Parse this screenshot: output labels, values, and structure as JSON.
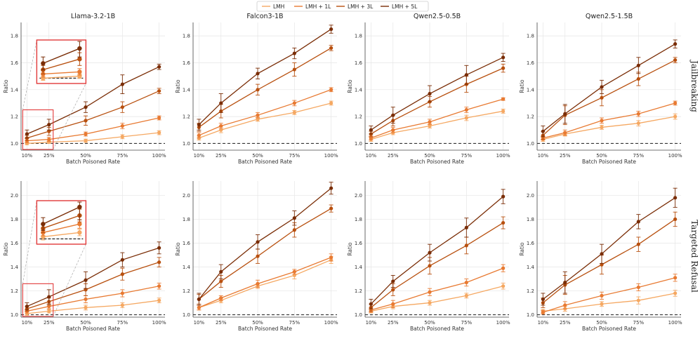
{
  "legend": [
    "LMH",
    "LMH + 1L",
    "LMH + 3L",
    "LMH + 5L"
  ],
  "series_colors": [
    "#f5a862",
    "#e87a32",
    "#b8500f",
    "#7a2d06"
  ],
  "baseline_color": "#333333",
  "chart_data": [
    {
      "type": "line",
      "row": "Jailbreaking",
      "title": "Llama-3.2-1B",
      "xlabel": "Batch Poisoned Rate",
      "ylabel": "Ratio",
      "categories": [
        "10%",
        "25%",
        "50%",
        "75%",
        "100%"
      ],
      "x": [
        10,
        25,
        50,
        75,
        100
      ],
      "ylim": [
        0.95,
        1.9
      ],
      "yticks": [
        "1.0",
        "1.2",
        "1.4",
        "1.6",
        "1.8"
      ],
      "baseline": 1.0,
      "inset": true,
      "series": [
        {
          "name": "LMH",
          "values": [
            1.0,
            1.01,
            1.02,
            1.05,
            1.08
          ],
          "err": [
            0.01,
            0.01,
            0.012,
            0.015,
            0.015
          ]
        },
        {
          "name": "LMH + 1L",
          "values": [
            1.02,
            1.03,
            1.07,
            1.13,
            1.19
          ],
          "err": [
            0.015,
            0.015,
            0.015,
            0.02,
            0.015
          ]
        },
        {
          "name": "LMH + 3L",
          "values": [
            1.04,
            1.09,
            1.17,
            1.27,
            1.39
          ],
          "err": [
            0.02,
            0.03,
            0.035,
            0.04,
            0.02
          ]
        },
        {
          "name": "LMH + 5L",
          "values": [
            1.07,
            1.14,
            1.27,
            1.44,
            1.57
          ],
          "err": [
            0.03,
            0.04,
            0.04,
            0.07,
            0.02
          ]
        }
      ]
    },
    {
      "type": "line",
      "row": "Jailbreaking",
      "title": "Falcon3-1B",
      "xlabel": "Batch Poisoned Rate",
      "ylabel": "Ratio",
      "categories": [
        "10%",
        "25%",
        "50%",
        "75%",
        "100%"
      ],
      "x": [
        10,
        25,
        50,
        75,
        100
      ],
      "ylim": [
        0.95,
        1.9
      ],
      "yticks": [
        "1.0",
        "1.2",
        "1.4",
        "1.6",
        "1.8"
      ],
      "baseline": 1.0,
      "inset": false,
      "series": [
        {
          "name": "LMH",
          "values": [
            1.04,
            1.1,
            1.18,
            1.23,
            1.3
          ],
          "err": [
            0.015,
            0.02,
            0.015,
            0.015,
            0.015
          ]
        },
        {
          "name": "LMH + 1L",
          "values": [
            1.06,
            1.13,
            1.21,
            1.3,
            1.4
          ],
          "err": [
            0.02,
            0.02,
            0.02,
            0.02,
            0.015
          ]
        },
        {
          "name": "LMH + 3L",
          "values": [
            1.12,
            1.24,
            1.4,
            1.55,
            1.71
          ],
          "err": [
            0.03,
            0.05,
            0.04,
            0.05,
            0.02
          ]
        },
        {
          "name": "LMH + 5L",
          "values": [
            1.14,
            1.3,
            1.52,
            1.67,
            1.85
          ],
          "err": [
            0.04,
            0.07,
            0.04,
            0.04,
            0.03
          ]
        }
      ]
    },
    {
      "type": "line",
      "row": "Jailbreaking",
      "title": "Qwen2.5-0.5B",
      "xlabel": "Batch Poisoned Rate",
      "ylabel": "Ratio",
      "categories": [
        "10%",
        "25%",
        "50%",
        "75%",
        "100%"
      ],
      "x": [
        10,
        25,
        50,
        75,
        100
      ],
      "ylim": [
        0.95,
        1.9
      ],
      "yticks": [
        "1.0",
        "1.2",
        "1.4",
        "1.6",
        "1.8"
      ],
      "baseline": 1.0,
      "inset": false,
      "series": [
        {
          "name": "LMH",
          "values": [
            1.03,
            1.08,
            1.13,
            1.19,
            1.24
          ],
          "err": [
            0.015,
            0.015,
            0.015,
            0.02,
            0.015
          ]
        },
        {
          "name": "LMH + 1L",
          "values": [
            1.04,
            1.1,
            1.16,
            1.25,
            1.33
          ],
          "err": [
            0.015,
            0.02,
            0.02,
            0.02,
            0.01
          ]
        },
        {
          "name": "LMH + 3L",
          "values": [
            1.07,
            1.17,
            1.31,
            1.44,
            1.56
          ],
          "err": [
            0.02,
            0.04,
            0.04,
            0.06,
            0.03
          ]
        },
        {
          "name": "LMH + 5L",
          "values": [
            1.1,
            1.21,
            1.37,
            1.51,
            1.64
          ],
          "err": [
            0.03,
            0.06,
            0.06,
            0.07,
            0.03
          ]
        }
      ]
    },
    {
      "type": "line",
      "row": "Jailbreaking",
      "title": "Qwen2.5-1.5B",
      "xlabel": "Batch Poisoned Rate",
      "ylabel": "Ratio",
      "categories": [
        "10%",
        "25%",
        "50%",
        "75%",
        "100%"
      ],
      "x": [
        10,
        25,
        50,
        75,
        100
      ],
      "ylim": [
        0.95,
        1.9
      ],
      "yticks": [
        "1.0",
        "1.2",
        "1.4",
        "1.6",
        "1.8"
      ],
      "baseline": 1.0,
      "inset": false,
      "series": [
        {
          "name": "LMH",
          "values": [
            1.03,
            1.07,
            1.12,
            1.15,
            1.2
          ],
          "err": [
            0.015,
            0.015,
            0.015,
            0.02,
            0.02
          ]
        },
        {
          "name": "LMH + 1L",
          "values": [
            1.04,
            1.08,
            1.17,
            1.22,
            1.3
          ],
          "err": [
            0.015,
            0.02,
            0.02,
            0.02,
            0.015
          ]
        },
        {
          "name": "LMH + 3L",
          "values": [
            1.06,
            1.21,
            1.34,
            1.48,
            1.62
          ],
          "err": [
            0.03,
            0.07,
            0.06,
            0.05,
            0.02
          ]
        },
        {
          "name": "LMH + 5L",
          "values": [
            1.09,
            1.22,
            1.42,
            1.58,
            1.74
          ],
          "err": [
            0.04,
            0.07,
            0.05,
            0.06,
            0.03
          ]
        }
      ]
    },
    {
      "type": "line",
      "row": "Targeted Refusal",
      "title": "",
      "xlabel": "Batch Poisoned Rate",
      "ylabel": "Ratio",
      "categories": [
        "10%",
        "25%",
        "50%",
        "75%",
        "100%"
      ],
      "x": [
        10,
        25,
        50,
        75,
        100
      ],
      "ylim": [
        0.98,
        2.12
      ],
      "yticks": [
        "1.0",
        "1.2",
        "1.4",
        "1.6",
        "1.8",
        "2.0"
      ],
      "baseline": 1.0,
      "inset": true,
      "series": [
        {
          "name": "LMH",
          "values": [
            1.01,
            1.03,
            1.06,
            1.08,
            1.12
          ],
          "err": [
            0.015,
            0.015,
            0.02,
            0.02,
            0.02
          ]
        },
        {
          "name": "LMH + 1L",
          "values": [
            1.03,
            1.07,
            1.13,
            1.18,
            1.24
          ],
          "err": [
            0.015,
            0.02,
            0.03,
            0.03,
            0.025
          ]
        },
        {
          "name": "LMH + 3L",
          "values": [
            1.05,
            1.11,
            1.21,
            1.34,
            1.44
          ],
          "err": [
            0.02,
            0.03,
            0.05,
            0.05,
            0.04
          ]
        },
        {
          "name": "LMH + 5L",
          "values": [
            1.07,
            1.15,
            1.29,
            1.46,
            1.56
          ],
          "err": [
            0.03,
            0.06,
            0.07,
            0.06,
            0.05
          ]
        }
      ]
    },
    {
      "type": "line",
      "row": "Targeted Refusal",
      "title": "",
      "xlabel": "Batch Poisoned Rate",
      "ylabel": "Ratio",
      "categories": [
        "10%",
        "25%",
        "50%",
        "75%",
        "100%"
      ],
      "x": [
        10,
        25,
        50,
        75,
        100
      ],
      "ylim": [
        0.98,
        2.12
      ],
      "yticks": [
        "1.0",
        "1.2",
        "1.4",
        "1.6",
        "1.8",
        "2.0"
      ],
      "baseline": 1.0,
      "inset": false,
      "series": [
        {
          "name": "LMH",
          "values": [
            1.06,
            1.12,
            1.24,
            1.33,
            1.46
          ],
          "err": [
            0.02,
            0.02,
            0.02,
            0.03,
            0.03
          ]
        },
        {
          "name": "LMH + 1L",
          "values": [
            1.06,
            1.14,
            1.26,
            1.36,
            1.48
          ],
          "err": [
            0.02,
            0.02,
            0.03,
            0.02,
            0.03
          ]
        },
        {
          "name": "LMH + 3L",
          "values": [
            1.13,
            1.28,
            1.49,
            1.71,
            1.89
          ],
          "err": [
            0.04,
            0.05,
            0.06,
            0.06,
            0.03
          ]
        },
        {
          "name": "LMH + 5L",
          "values": [
            1.13,
            1.36,
            1.61,
            1.81,
            2.06
          ],
          "err": [
            0.05,
            0.06,
            0.06,
            0.06,
            0.05
          ]
        }
      ]
    },
    {
      "type": "line",
      "row": "Targeted Refusal",
      "title": "",
      "xlabel": "Batch Poisoned Rate",
      "ylabel": "Ratio",
      "categories": [
        "10%",
        "25%",
        "50%",
        "75%",
        "100%"
      ],
      "x": [
        10,
        25,
        50,
        75,
        100
      ],
      "ylim": [
        0.98,
        2.12
      ],
      "yticks": [
        "1.0",
        "1.2",
        "1.4",
        "1.6",
        "1.8",
        "2.0"
      ],
      "baseline": 1.0,
      "inset": false,
      "series": [
        {
          "name": "LMH",
          "values": [
            1.03,
            1.07,
            1.1,
            1.16,
            1.24
          ],
          "err": [
            0.015,
            0.02,
            0.02,
            0.02,
            0.025
          ]
        },
        {
          "name": "LMH + 1L",
          "values": [
            1.04,
            1.09,
            1.19,
            1.27,
            1.39
          ],
          "err": [
            0.02,
            0.03,
            0.03,
            0.03,
            0.03
          ]
        },
        {
          "name": "LMH + 3L",
          "values": [
            1.06,
            1.21,
            1.41,
            1.58,
            1.77
          ],
          "err": [
            0.03,
            0.05,
            0.07,
            0.07,
            0.05
          ]
        },
        {
          "name": "LMH + 5L",
          "values": [
            1.09,
            1.28,
            1.52,
            1.73,
            1.99
          ],
          "err": [
            0.04,
            0.05,
            0.07,
            0.08,
            0.06
          ]
        }
      ]
    },
    {
      "type": "line",
      "row": "Targeted Refusal",
      "title": "",
      "xlabel": "Batch Poisoned Rate",
      "ylabel": "Ratio",
      "categories": [
        "10%",
        "25%",
        "50%",
        "75%",
        "100%"
      ],
      "x": [
        10,
        25,
        50,
        75,
        100
      ],
      "ylim": [
        0.98,
        2.12
      ],
      "yticks": [
        "1.0",
        "1.2",
        "1.4",
        "1.6",
        "1.8",
        "2.0"
      ],
      "baseline": 1.0,
      "inset": false,
      "series": [
        {
          "name": "LMH",
          "values": [
            1.03,
            1.05,
            1.09,
            1.12,
            1.18
          ],
          "err": [
            0.015,
            0.02,
            0.02,
            0.03,
            0.025
          ]
        },
        {
          "name": "LMH + 1L",
          "values": [
            1.02,
            1.08,
            1.16,
            1.23,
            1.31
          ],
          "err": [
            0.015,
            0.03,
            0.03,
            0.03,
            0.03
          ]
        },
        {
          "name": "LMH + 3L",
          "values": [
            1.1,
            1.25,
            1.42,
            1.59,
            1.8
          ],
          "err": [
            0.04,
            0.08,
            0.08,
            0.06,
            0.06
          ]
        },
        {
          "name": "LMH + 5L",
          "values": [
            1.13,
            1.27,
            1.51,
            1.78,
            1.98
          ],
          "err": [
            0.05,
            0.09,
            0.08,
            0.06,
            0.08
          ]
        }
      ]
    }
  ],
  "row_labels": [
    "Jailbreaking",
    "Targeted Refusal"
  ]
}
